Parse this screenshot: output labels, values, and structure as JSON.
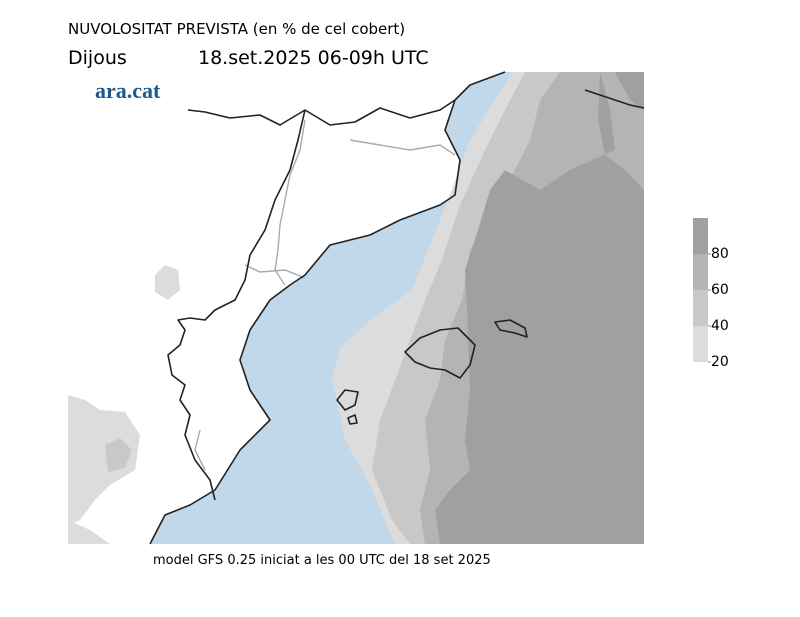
{
  "header": {
    "title": "NUVOLOSITAT PREVISTA (en % de cel cobert)",
    "day": "Dijous",
    "period": "18.set.2025 06-09h UTC"
  },
  "logo": "ara.cat",
  "footer": "model GFS 0.25 iniciat a les 00 UTC del 18 set 2025",
  "colorbar": {
    "lim": [
      20,
      100
    ],
    "ticks": [
      20,
      40,
      60,
      80
    ],
    "colors": [
      "#dcdcdc",
      "#c8c8c8",
      "#b4b4b4",
      "#a0a0a0"
    ]
  }
}
